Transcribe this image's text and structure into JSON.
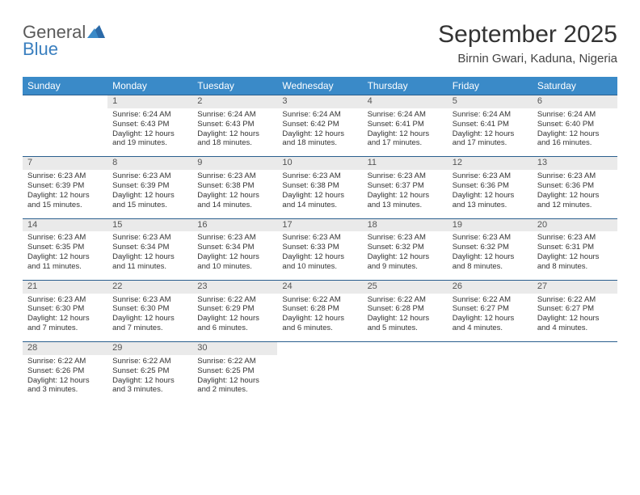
{
  "logo": {
    "word1": "General",
    "word2": "Blue"
  },
  "title": "September 2025",
  "location": "Birnin Gwari, Kaduna, Nigeria",
  "header_bg": "#3a8ac8",
  "dayname_row_bg": "#eaeaea",
  "row_border_color": "#2b5f8e",
  "text_color": "#333333",
  "font_family": "Arial, Helvetica, sans-serif",
  "day_headers": [
    "Sunday",
    "Monday",
    "Tuesday",
    "Wednesday",
    "Thursday",
    "Friday",
    "Saturday"
  ],
  "weeks": [
    {
      "daynums": [
        "",
        "1",
        "2",
        "3",
        "4",
        "5",
        "6"
      ],
      "cells": [
        null,
        {
          "sunrise": "Sunrise: 6:24 AM",
          "sunset": "Sunset: 6:43 PM",
          "daylight": "Daylight: 12 hours and 19 minutes."
        },
        {
          "sunrise": "Sunrise: 6:24 AM",
          "sunset": "Sunset: 6:43 PM",
          "daylight": "Daylight: 12 hours and 18 minutes."
        },
        {
          "sunrise": "Sunrise: 6:24 AM",
          "sunset": "Sunset: 6:42 PM",
          "daylight": "Daylight: 12 hours and 18 minutes."
        },
        {
          "sunrise": "Sunrise: 6:24 AM",
          "sunset": "Sunset: 6:41 PM",
          "daylight": "Daylight: 12 hours and 17 minutes."
        },
        {
          "sunrise": "Sunrise: 6:24 AM",
          "sunset": "Sunset: 6:41 PM",
          "daylight": "Daylight: 12 hours and 17 minutes."
        },
        {
          "sunrise": "Sunrise: 6:24 AM",
          "sunset": "Sunset: 6:40 PM",
          "daylight": "Daylight: 12 hours and 16 minutes."
        }
      ]
    },
    {
      "daynums": [
        "7",
        "8",
        "9",
        "10",
        "11",
        "12",
        "13"
      ],
      "cells": [
        {
          "sunrise": "Sunrise: 6:23 AM",
          "sunset": "Sunset: 6:39 PM",
          "daylight": "Daylight: 12 hours and 15 minutes."
        },
        {
          "sunrise": "Sunrise: 6:23 AM",
          "sunset": "Sunset: 6:39 PM",
          "daylight": "Daylight: 12 hours and 15 minutes."
        },
        {
          "sunrise": "Sunrise: 6:23 AM",
          "sunset": "Sunset: 6:38 PM",
          "daylight": "Daylight: 12 hours and 14 minutes."
        },
        {
          "sunrise": "Sunrise: 6:23 AM",
          "sunset": "Sunset: 6:38 PM",
          "daylight": "Daylight: 12 hours and 14 minutes."
        },
        {
          "sunrise": "Sunrise: 6:23 AM",
          "sunset": "Sunset: 6:37 PM",
          "daylight": "Daylight: 12 hours and 13 minutes."
        },
        {
          "sunrise": "Sunrise: 6:23 AM",
          "sunset": "Sunset: 6:36 PM",
          "daylight": "Daylight: 12 hours and 13 minutes."
        },
        {
          "sunrise": "Sunrise: 6:23 AM",
          "sunset": "Sunset: 6:36 PM",
          "daylight": "Daylight: 12 hours and 12 minutes."
        }
      ]
    },
    {
      "daynums": [
        "14",
        "15",
        "16",
        "17",
        "18",
        "19",
        "20"
      ],
      "cells": [
        {
          "sunrise": "Sunrise: 6:23 AM",
          "sunset": "Sunset: 6:35 PM",
          "daylight": "Daylight: 12 hours and 11 minutes."
        },
        {
          "sunrise": "Sunrise: 6:23 AM",
          "sunset": "Sunset: 6:34 PM",
          "daylight": "Daylight: 12 hours and 11 minutes."
        },
        {
          "sunrise": "Sunrise: 6:23 AM",
          "sunset": "Sunset: 6:34 PM",
          "daylight": "Daylight: 12 hours and 10 minutes."
        },
        {
          "sunrise": "Sunrise: 6:23 AM",
          "sunset": "Sunset: 6:33 PM",
          "daylight": "Daylight: 12 hours and 10 minutes."
        },
        {
          "sunrise": "Sunrise: 6:23 AM",
          "sunset": "Sunset: 6:32 PM",
          "daylight": "Daylight: 12 hours and 9 minutes."
        },
        {
          "sunrise": "Sunrise: 6:23 AM",
          "sunset": "Sunset: 6:32 PM",
          "daylight": "Daylight: 12 hours and 8 minutes."
        },
        {
          "sunrise": "Sunrise: 6:23 AM",
          "sunset": "Sunset: 6:31 PM",
          "daylight": "Daylight: 12 hours and 8 minutes."
        }
      ]
    },
    {
      "daynums": [
        "21",
        "22",
        "23",
        "24",
        "25",
        "26",
        "27"
      ],
      "cells": [
        {
          "sunrise": "Sunrise: 6:23 AM",
          "sunset": "Sunset: 6:30 PM",
          "daylight": "Daylight: 12 hours and 7 minutes."
        },
        {
          "sunrise": "Sunrise: 6:23 AM",
          "sunset": "Sunset: 6:30 PM",
          "daylight": "Daylight: 12 hours and 7 minutes."
        },
        {
          "sunrise": "Sunrise: 6:22 AM",
          "sunset": "Sunset: 6:29 PM",
          "daylight": "Daylight: 12 hours and 6 minutes."
        },
        {
          "sunrise": "Sunrise: 6:22 AM",
          "sunset": "Sunset: 6:28 PM",
          "daylight": "Daylight: 12 hours and 6 minutes."
        },
        {
          "sunrise": "Sunrise: 6:22 AM",
          "sunset": "Sunset: 6:28 PM",
          "daylight": "Daylight: 12 hours and 5 minutes."
        },
        {
          "sunrise": "Sunrise: 6:22 AM",
          "sunset": "Sunset: 6:27 PM",
          "daylight": "Daylight: 12 hours and 4 minutes."
        },
        {
          "sunrise": "Sunrise: 6:22 AM",
          "sunset": "Sunset: 6:27 PM",
          "daylight": "Daylight: 12 hours and 4 minutes."
        }
      ]
    },
    {
      "daynums": [
        "28",
        "29",
        "30",
        "",
        "",
        "",
        ""
      ],
      "cells": [
        {
          "sunrise": "Sunrise: 6:22 AM",
          "sunset": "Sunset: 6:26 PM",
          "daylight": "Daylight: 12 hours and 3 minutes."
        },
        {
          "sunrise": "Sunrise: 6:22 AM",
          "sunset": "Sunset: 6:25 PM",
          "daylight": "Daylight: 12 hours and 3 minutes."
        },
        {
          "sunrise": "Sunrise: 6:22 AM",
          "sunset": "Sunset: 6:25 PM",
          "daylight": "Daylight: 12 hours and 2 minutes."
        },
        null,
        null,
        null,
        null
      ]
    }
  ]
}
